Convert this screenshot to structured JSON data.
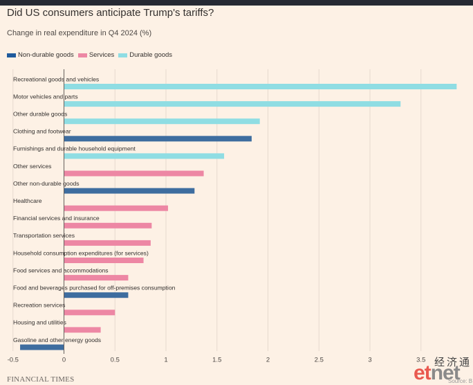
{
  "title": "Did US consumers anticipate Trump's tariffs?",
  "subtitle": "Change in real expenditure in Q4 2024 (%)",
  "source": "FINANCIAL TIMES",
  "watermark": {
    "chinese": "经济通",
    "logo_left": "et",
    "logo_right": "net",
    "source_fragment": "Source: B"
  },
  "colors": {
    "background": "#fdf1e5",
    "Non-durable goods": "#3e6d9f",
    "Services": "#ed87a4",
    "Durable goods": "#8fdde3",
    "gridline": "#e6d9ce",
    "zeroline": "#66605c"
  },
  "chart_data": {
    "type": "bar",
    "orientation": "horizontal",
    "title": "Did US consumers anticipate Trump's tariffs?",
    "subtitle": "Change in real expenditure in Q4 2024 (%)",
    "legend": [
      "Non-durable goods",
      "Services",
      "Durable goods"
    ],
    "legend_position": "top-left",
    "xlim": [
      -0.5,
      3.8
    ],
    "xticks": [
      "-0.5",
      "0",
      "0.5",
      "1",
      "1.5",
      "2",
      "2.5",
      "3",
      "3.5"
    ],
    "xtick_values": [
      -0.5,
      0,
      0.5,
      1,
      1.5,
      2,
      2.5,
      3,
      3.5
    ],
    "grid": "vertical",
    "categories": [
      "Recreational goods and vehicles",
      "Motor vehicles and parts",
      "Other durable goods",
      "Clothing and footwear",
      "Furnishings and durable household equipment",
      "Other services",
      "Other non-durable goods",
      "Healthcare",
      "Financial services and insurance",
      "Transportation services",
      "Household consumption expenditures (for services)",
      "Food services and accommodations",
      "Food and beverages purchased for off-premises consumption",
      "Recreation services",
      "Housing and utilities",
      "Gasoline and other energy goods"
    ],
    "values": [
      3.85,
      3.3,
      1.92,
      1.84,
      1.57,
      1.37,
      1.28,
      1.02,
      0.86,
      0.85,
      0.78,
      0.63,
      0.63,
      0.5,
      0.36,
      -0.43
    ],
    "groups": [
      "Durable goods",
      "Durable goods",
      "Durable goods",
      "Non-durable goods",
      "Durable goods",
      "Services",
      "Non-durable goods",
      "Services",
      "Services",
      "Services",
      "Services",
      "Services",
      "Non-durable goods",
      "Services",
      "Services",
      "Non-durable goods"
    ]
  }
}
